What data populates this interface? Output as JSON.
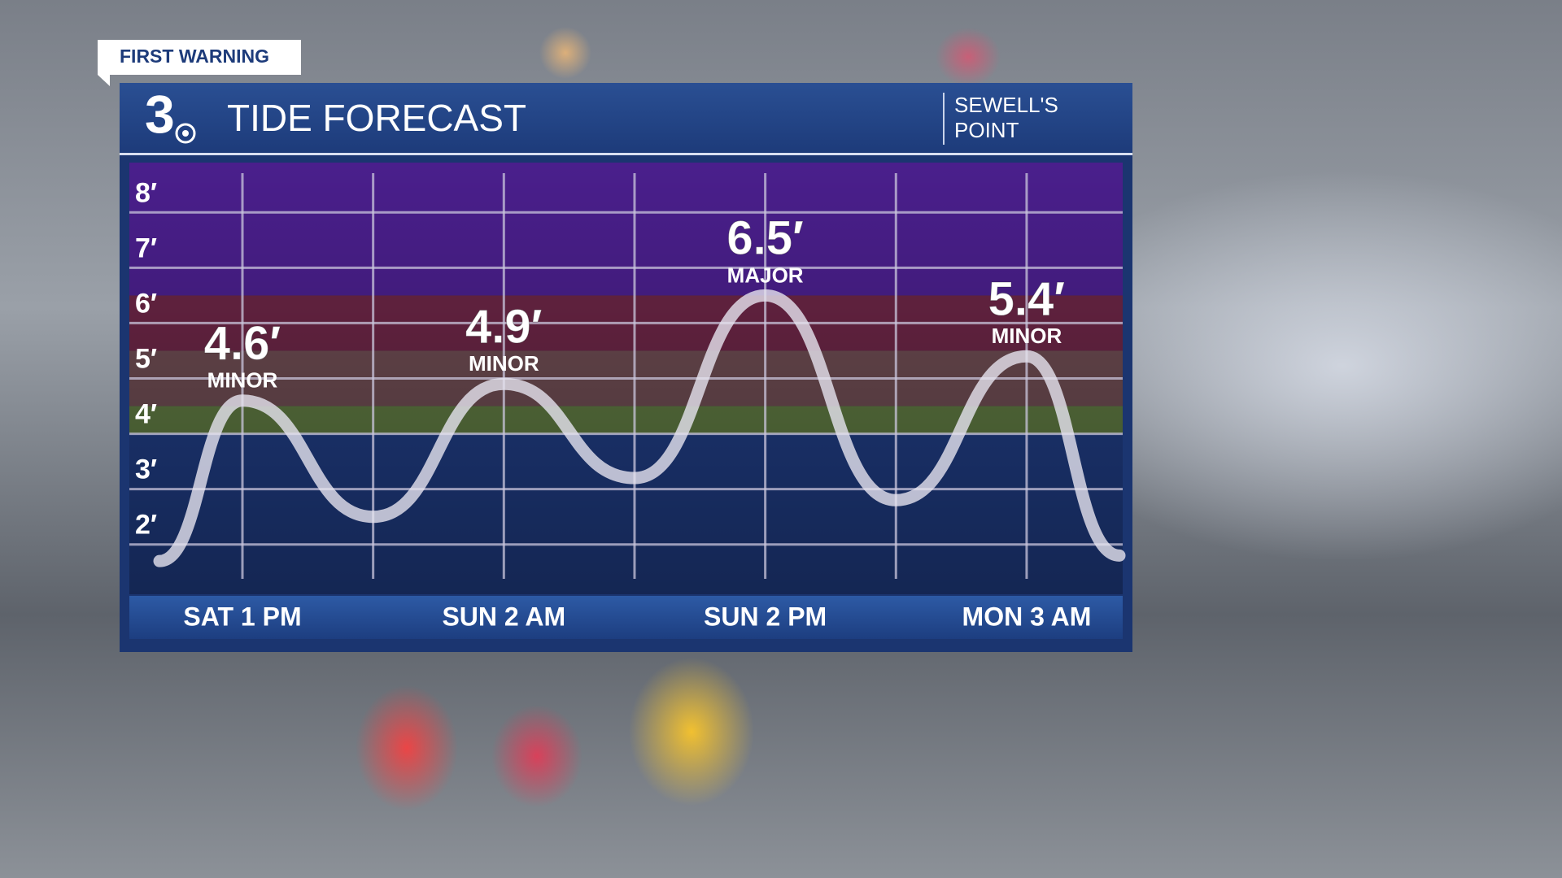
{
  "badge": "FIRST WARNING",
  "logo": "3",
  "location": [
    "SEWELL'S",
    "POINT"
  ],
  "chart_data": {
    "type": "line",
    "title": "TIDE FORECAST",
    "categories": [
      null,
      "SAT 1 PM",
      null,
      "SUN 2 AM",
      null,
      "SUN 2 PM",
      null,
      "MON 3 AM",
      null
    ],
    "values": [
      1.7,
      4.6,
      2.5,
      4.9,
      3.2,
      6.5,
      2.8,
      5.4,
      1.8
    ],
    "value_labels": [
      null,
      "4.6′",
      null,
      "4.9′",
      null,
      "6.5′",
      null,
      "5.4′",
      null
    ],
    "point_labels": [
      null,
      "MINOR",
      null,
      "MINOR",
      null,
      "MAJOR",
      null,
      "MINOR",
      null
    ],
    "color": "#e6e3ef",
    "ylim": [
      1.1,
      8.9
    ],
    "yticks": [
      {
        "value": 2,
        "label": "2′"
      },
      {
        "value": 3,
        "label": "3′"
      },
      {
        "value": 4,
        "label": "4′"
      },
      {
        "value": 5,
        "label": "5′"
      },
      {
        "value": 6,
        "label": "6′"
      },
      {
        "value": 7,
        "label": "7′"
      },
      {
        "value": 8,
        "label": "8′"
      }
    ],
    "grid": true,
    "bands": [
      {
        "from": 1.1,
        "to": 4,
        "color": "#1f3b80"
      },
      {
        "from": 4,
        "to": 4.5,
        "color": "#5c7640"
      },
      {
        "from": 4.5,
        "to": 5.5,
        "color": "#6b4a50"
      },
      {
        "from": 5.5,
        "to": 6.5,
        "color": "#6a2545"
      },
      {
        "from": 6.5,
        "to": 8.9,
        "color": "#4a1f8c"
      }
    ]
  }
}
